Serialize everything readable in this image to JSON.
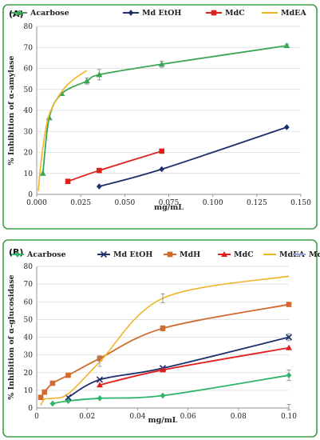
{
  "chart_data": [
    {
      "panel_label": "(A)",
      "type": "line",
      "xlabel": "mg/mL",
      "ylabel": "% Inhibition of α-amylase",
      "xlim": [
        0.0,
        0.15
      ],
      "ylim": [
        0,
        80
      ],
      "xticks": [
        "0.000",
        "0.025",
        "0.050",
        "0.075",
        "0.100",
        "0.125",
        "0.150"
      ],
      "yticks": [
        "0",
        "10",
        "20",
        "30",
        "40",
        "50",
        "60",
        "70",
        "80"
      ],
      "grid": true,
      "legend_position": "top",
      "series": [
        {
          "name": "Acarbose",
          "color": "#3aa655",
          "marker": "triangle",
          "x": [
            0.0035,
            0.0071,
            0.0142,
            0.0285,
            0.0355,
            0.071,
            0.142
          ],
          "y": [
            10.0,
            36.5,
            48.0,
            54.0,
            57.0,
            62.0,
            70.8
          ],
          "err": [
            0,
            0,
            0,
            1.5,
            2.5,
            1.5,
            0.8
          ]
        },
        {
          "name": "Md EtOH",
          "color": "#1f2f6b",
          "marker": "diamond",
          "x": [
            0.0355,
            0.071,
            0.142
          ],
          "y": [
            3.8,
            12.0,
            32.0
          ],
          "err": [
            0,
            0,
            0
          ]
        },
        {
          "name": "MdC",
          "color": "#e0201e",
          "marker": "square",
          "x": [
            0.0177,
            0.0355,
            0.071
          ],
          "y": [
            6.2,
            11.4,
            20.6
          ],
          "err": [
            0,
            0,
            0
          ]
        },
        {
          "name": "MdEA",
          "color": "#f0b323",
          "marker": "none",
          "x": [
            0.0009,
            0.0018,
            0.0036,
            0.0071,
            0.0142,
            0.0213,
            0.0285
          ],
          "y": [
            1.5,
            10.0,
            23.0,
            38.0,
            49.0,
            55.0,
            59.0
          ],
          "err": [
            0,
            0,
            0,
            0,
            0,
            0,
            0
          ]
        }
      ]
    },
    {
      "panel_label": "(B)",
      "type": "line",
      "xlabel": "mg/mL",
      "ylabel": "% Inhibition of α-glucosidase",
      "xlim": [
        0.0,
        0.1
      ],
      "ylim": [
        0,
        80
      ],
      "xticks": [
        "0",
        "0.02",
        "0.04",
        "0.06",
        "0.08",
        "0.10"
      ],
      "yticks": [
        "0",
        "10",
        "20",
        "30",
        "40",
        "50",
        "60",
        "70",
        "80"
      ],
      "grid": true,
      "legend_position": "top",
      "series": [
        {
          "name": "Acarbose",
          "color": "#2fb56b",
          "marker": "diamond",
          "x": [
            0.0063,
            0.0125,
            0.025,
            0.05,
            0.1
          ],
          "y": [
            2.5,
            4.0,
            5.5,
            7.0,
            18.5
          ],
          "err": [
            0,
            0,
            0,
            0,
            3.0
          ]
        },
        {
          "name": "Md EtOH",
          "color": "#1f2f6b",
          "marker": "cross",
          "x": [
            0.0125,
            0.025,
            0.05,
            0.1
          ],
          "y": [
            6.0,
            16.0,
            22.5,
            40.0
          ],
          "err": [
            0,
            0,
            0,
            2.0
          ]
        },
        {
          "name": "MdH",
          "color": "#d06a2d",
          "marker": "square",
          "x": [
            0.0016,
            0.0031,
            0.0063,
            0.0125,
            0.025,
            0.05,
            0.1
          ],
          "y": [
            6.0,
            9.0,
            14.0,
            18.5,
            28.0,
            45.0,
            58.5
          ],
          "err": [
            0,
            0,
            0,
            0,
            1.5,
            1.5,
            0.5
          ]
        },
        {
          "name": "MdC",
          "color": "#e0201e",
          "marker": "triangle",
          "x": [
            0.025,
            0.05,
            0.1
          ],
          "y": [
            13.0,
            21.5,
            34.0
          ],
          "err": [
            0,
            0,
            0
          ]
        },
        {
          "name": "MdEA",
          "color": "#f0b323",
          "marker": "none",
          "x": [
            0.0016,
            0.0031,
            0.0063,
            0.0125,
            0.025,
            0.05,
            0.1
          ],
          "y": [
            1.5,
            5.0,
            5.5,
            8.0,
            26.0,
            62.0,
            74.5
          ],
          "err": [
            0,
            0,
            0,
            0,
            2.5,
            2.5,
            0
          ]
        },
        {
          "name": "MdB",
          "color": "#8fa5d8",
          "marker": "none",
          "x": [
            0.1
          ],
          "y": [
            0.5
          ],
          "err": [
            1.5
          ]
        }
      ]
    }
  ]
}
